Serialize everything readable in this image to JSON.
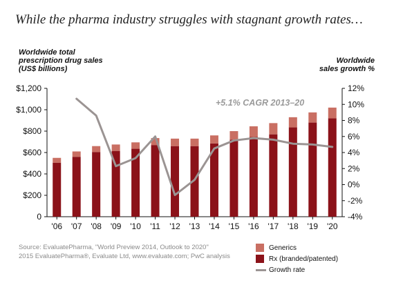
{
  "title": "While the pharma industry struggles with stagnant growth rates…",
  "y_left_label": [
    "Worldwide total",
    "prescription drug sales",
    "(US$ billions)"
  ],
  "y_right_label": [
    "Worldwide",
    "sales growth %"
  ],
  "annotation": "+5.1% CAGR 2013–20",
  "source_lines": [
    "Source: EvaluatePharma, \"World Preview 2014, Outlook to 2020\"",
    "2015 EvaluatePharma®, Evaluate Ltd, www.evaluate.com; PwC analysis"
  ],
  "colors": {
    "generics": "#c96f63",
    "rx": "#8b1219",
    "growth": "#9b9493"
  },
  "chart_data": {
    "type": "bar",
    "stacked": true,
    "categories": [
      "'06",
      "'07",
      "'08",
      "'09",
      "'10",
      "'11",
      "'12",
      "'13",
      "'14",
      "'15",
      "'16",
      "'17",
      "'18",
      "'19",
      "'20"
    ],
    "ylim": [
      0,
      1200
    ],
    "y_ticks": [
      "0",
      "$200",
      "$400",
      "$600",
      "$800",
      "$1,000",
      "$1,200"
    ],
    "y_right_lim": [
      -4,
      12
    ],
    "y_right_ticks": [
      "-4%",
      "-2%",
      "0%",
      "2%",
      "4%",
      "6%",
      "8%",
      "10%",
      "12%"
    ],
    "series": [
      {
        "name": "Rx (branded/patented)",
        "values": [
          505,
          560,
          605,
          615,
          635,
          670,
          660,
          660,
          685,
          720,
          745,
          770,
          835,
          880,
          920
        ]
      },
      {
        "name": "Generics",
        "values": [
          45,
          50,
          55,
          60,
          60,
          65,
          70,
          70,
          75,
          80,
          100,
          105,
          95,
          95,
          100
        ]
      }
    ],
    "line_series": {
      "name": "Growth rate",
      "axis": "right",
      "values": [
        null,
        10.7,
        8.6,
        2.3,
        3.3,
        6.0,
        -1.3,
        0.6,
        4.5,
        5.5,
        5.8,
        5.6,
        5.1,
        5.0,
        4.7
      ]
    },
    "legend": [
      "Generics",
      "Rx (branded/patented)",
      "Growth rate"
    ]
  }
}
